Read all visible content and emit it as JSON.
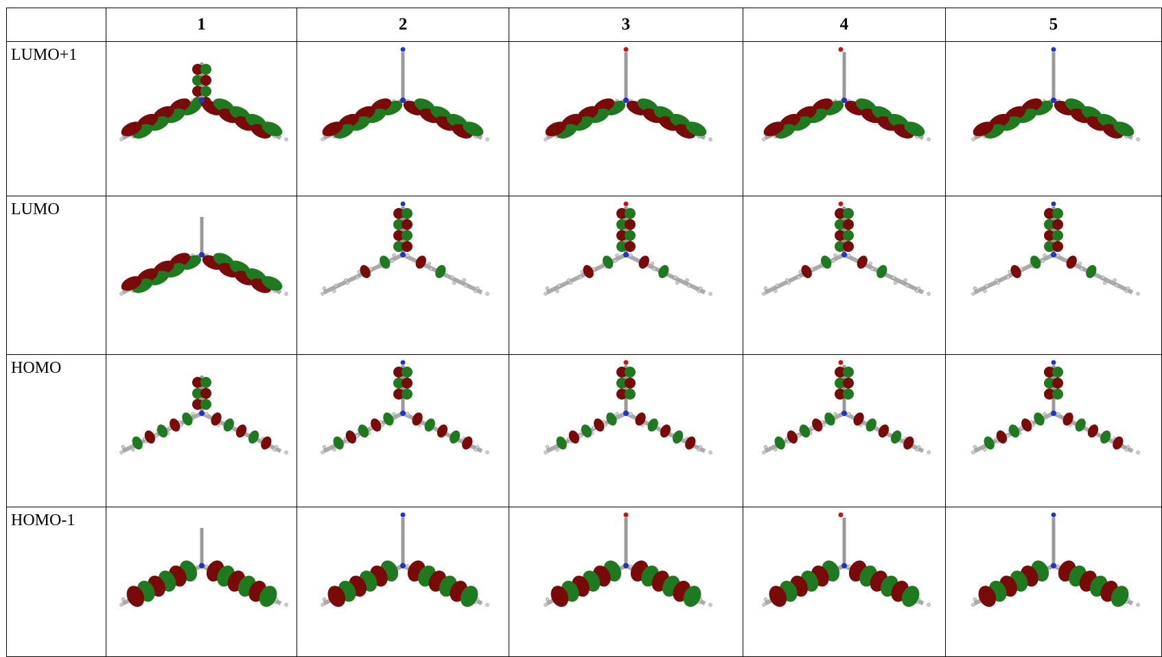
{
  "table": {
    "column_headers": [
      "1",
      "2",
      "3",
      "4",
      "5"
    ],
    "row_labels": [
      "LUMO+1",
      "LUMO",
      "HOMO",
      "HOMO-1"
    ]
  }
}
